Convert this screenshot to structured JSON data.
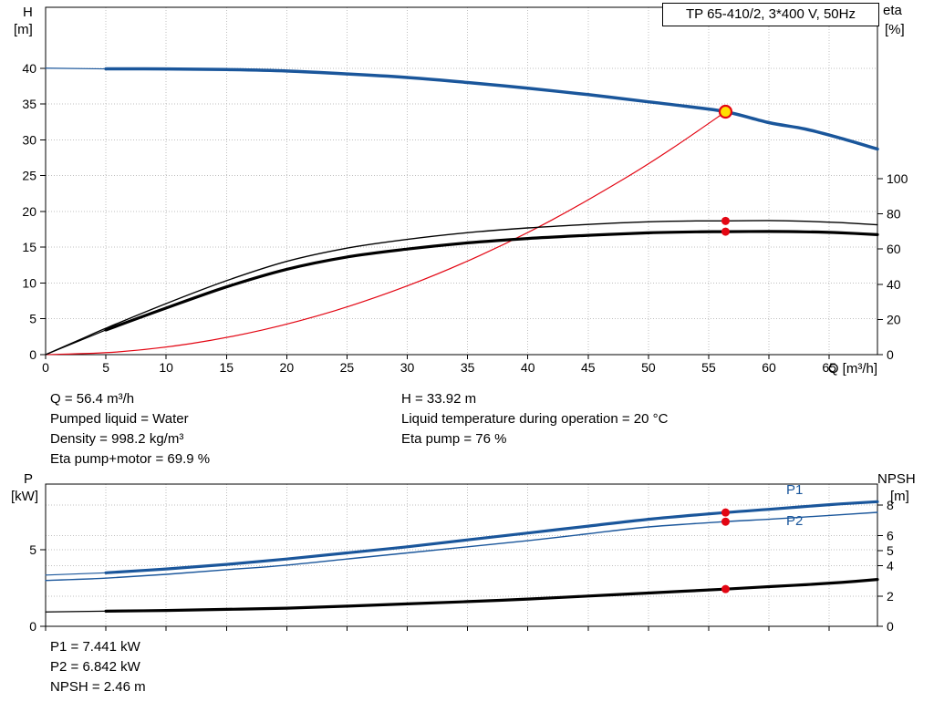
{
  "colors": {
    "blue": "#1a569b",
    "black": "#000000",
    "red": "#e30613",
    "duty": "#ffe000",
    "grid": "#bfbfbf"
  },
  "chart_data": [
    {
      "type": "line",
      "name": "hq-eta-chart",
      "title": "TP 65-410/2, 3*400 V, 50Hz",
      "x_axis": {
        "label": "Q [m³/h]",
        "range": [
          0,
          69
        ],
        "ticks": [
          0,
          5,
          10,
          15,
          20,
          25,
          30,
          35,
          40,
          45,
          50,
          55,
          60,
          65
        ],
        "grid": [
          5,
          10,
          15,
          20,
          25,
          30,
          35,
          40,
          45,
          50,
          55,
          60,
          65
        ],
        "show_tick_labels": true
      },
      "y_left": {
        "label": "H",
        "unit": "[m]",
        "range": [
          0,
          48.5
        ],
        "ticks": [
          0,
          5,
          10,
          15,
          20,
          25,
          30,
          35,
          40
        ],
        "grid": [
          5,
          10,
          15,
          20,
          25,
          30,
          35,
          40
        ]
      },
      "y_right": {
        "label": "eta",
        "unit": "[%]",
        "range": [
          0,
          197.4
        ],
        "ticks": [
          0,
          20,
          40,
          60,
          80,
          100
        ],
        "grid": []
      },
      "series": [
        {
          "name": "system-curve",
          "axis": "left",
          "color": "red",
          "width": 1.2,
          "points": [
            [
              0,
              0
            ],
            [
              6,
              0.38
            ],
            [
              12,
              1.53
            ],
            [
              18,
              3.45
            ],
            [
              24,
              6.14
            ],
            [
              30,
              9.6
            ],
            [
              36,
              13.82
            ],
            [
              42,
              18.8
            ],
            [
              48,
              24.57
            ],
            [
              52,
              28.83
            ],
            [
              56.4,
              33.92
            ]
          ]
        },
        {
          "name": "hq-curve-lead",
          "axis": "left",
          "color": "blue",
          "width": 1.2,
          "points": [
            [
              0,
              40
            ],
            [
              5,
              39.9
            ]
          ]
        },
        {
          "name": "hq-curve",
          "axis": "left",
          "color": "blue",
          "width": 3.5,
          "points": [
            [
              5,
              39.9
            ],
            [
              10,
              39.9
            ],
            [
              15,
              39.8
            ],
            [
              20,
              39.6
            ],
            [
              25,
              39.2
            ],
            [
              30,
              38.7
            ],
            [
              35,
              38.0
            ],
            [
              40,
              37.2
            ],
            [
              45,
              36.3
            ],
            [
              50,
              35.3
            ],
            [
              53,
              34.7
            ],
            [
              56.4,
              33.92
            ],
            [
              60,
              32.4
            ],
            [
              63,
              31.5
            ],
            [
              66,
              30.2
            ],
            [
              69,
              28.7
            ]
          ]
        },
        {
          "name": "eta-pump-curve",
          "axis": "right",
          "color": "black",
          "width": 1.4,
          "points": [
            [
              0,
              0
            ],
            [
              3,
              9
            ],
            [
              5,
              15
            ],
            [
              10,
              29
            ],
            [
              15,
              42
            ],
            [
              20,
              53
            ],
            [
              25,
              60.5
            ],
            [
              30,
              65.5
            ],
            [
              35,
              69.3
            ],
            [
              40,
              72
            ],
            [
              45,
              74
            ],
            [
              50,
              75.5
            ],
            [
              54,
              76
            ],
            [
              56.4,
              76
            ],
            [
              60,
              76.2
            ],
            [
              63,
              75.8
            ],
            [
              66,
              75
            ],
            [
              69,
              73.8
            ]
          ]
        },
        {
          "name": "eta-pump-motor-lead",
          "axis": "right",
          "color": "black",
          "width": 1.2,
          "points": [
            [
              0,
              0
            ],
            [
              5,
              14
            ]
          ]
        },
        {
          "name": "eta-pump-motor-curve",
          "axis": "right",
          "color": "black",
          "width": 3.2,
          "points": [
            [
              5,
              14
            ],
            [
              10,
              26.5
            ],
            [
              15,
              38.5
            ],
            [
              20,
              48.5
            ],
            [
              25,
              55.5
            ],
            [
              30,
              60
            ],
            [
              35,
              63.5
            ],
            [
              40,
              66
            ],
            [
              45,
              67.8
            ],
            [
              50,
              69.2
            ],
            [
              54,
              69.8
            ],
            [
              56.4,
              69.9
            ],
            [
              60,
              70
            ],
            [
              63,
              69.8
            ],
            [
              66,
              69.2
            ],
            [
              69,
              68.2
            ]
          ]
        }
      ],
      "markers": [
        {
          "name": "duty-point",
          "axis": "left",
          "x": 56.4,
          "y": 33.92,
          "style": "duty"
        },
        {
          "name": "eta-pump-point",
          "axis": "right",
          "x": 56.4,
          "y": 76,
          "style": "dot"
        },
        {
          "name": "eta-pump-motor-point",
          "axis": "right",
          "x": 56.4,
          "y": 69.9,
          "style": "dot"
        }
      ]
    },
    {
      "type": "line",
      "name": "power-npsh-chart",
      "title": "",
      "x_axis": {
        "label": "",
        "range": [
          0,
          69
        ],
        "ticks": [
          0,
          5,
          10,
          15,
          20,
          25,
          30,
          35,
          40,
          45,
          50,
          55,
          60,
          65
        ],
        "grid": [
          5,
          10,
          15,
          20,
          25,
          30,
          35,
          40,
          45,
          50,
          55,
          60,
          65
        ],
        "show_tick_labels": false
      },
      "y_left": {
        "label": "P",
        "unit": "[kW]",
        "range": [
          0,
          9.3
        ],
        "ticks": [
          0,
          5
        ],
        "grid": [
          5
        ]
      },
      "y_right": {
        "label": "NPSH",
        "unit": "[m]",
        "range": [
          0,
          9.4
        ],
        "ticks": [
          0,
          2,
          4,
          5,
          6,
          8
        ],
        "grid": [
          2,
          4,
          6,
          8
        ]
      },
      "labels": {
        "p1": "P1",
        "p2": "P2"
      },
      "series": [
        {
          "name": "p1-curve-lead",
          "axis": "left",
          "color": "blue",
          "width": 1.2,
          "points": [
            [
              0,
              3.35
            ],
            [
              5,
              3.5
            ]
          ]
        },
        {
          "name": "p1-curve",
          "axis": "left",
          "color": "blue",
          "width": 3.2,
          "points": [
            [
              5,
              3.5
            ],
            [
              10,
              3.75
            ],
            [
              15,
              4.05
            ],
            [
              20,
              4.4
            ],
            [
              25,
              4.8
            ],
            [
              30,
              5.2
            ],
            [
              35,
              5.65
            ],
            [
              40,
              6.1
            ],
            [
              45,
              6.55
            ],
            [
              50,
              7.0
            ],
            [
              56.4,
              7.441
            ],
            [
              60,
              7.65
            ],
            [
              65,
              7.95
            ],
            [
              69,
              8.15
            ]
          ]
        },
        {
          "name": "p2-curve",
          "axis": "left",
          "color": "blue",
          "width": 1.4,
          "points": [
            [
              0,
              3.0
            ],
            [
              5,
              3.15
            ],
            [
              10,
              3.4
            ],
            [
              15,
              3.7
            ],
            [
              20,
              4.0
            ],
            [
              25,
              4.4
            ],
            [
              30,
              4.8
            ],
            [
              35,
              5.2
            ],
            [
              40,
              5.6
            ],
            [
              45,
              6.05
            ],
            [
              50,
              6.5
            ],
            [
              56.4,
              6.842
            ],
            [
              60,
              7.0
            ],
            [
              65,
              7.25
            ],
            [
              69,
              7.45
            ]
          ]
        },
        {
          "name": "npsh-curve-lead",
          "axis": "right",
          "color": "black",
          "width": 1.2,
          "points": [
            [
              0,
              0.95
            ],
            [
              5,
              1.0
            ]
          ]
        },
        {
          "name": "npsh-curve",
          "axis": "right",
          "color": "black",
          "width": 3.2,
          "points": [
            [
              5,
              1.0
            ],
            [
              10,
              1.05
            ],
            [
              15,
              1.12
            ],
            [
              20,
              1.2
            ],
            [
              25,
              1.33
            ],
            [
              30,
              1.48
            ],
            [
              35,
              1.63
            ],
            [
              40,
              1.8
            ],
            [
              45,
              2.0
            ],
            [
              50,
              2.2
            ],
            [
              56.4,
              2.46
            ],
            [
              60,
              2.62
            ],
            [
              63,
              2.75
            ],
            [
              66,
              2.9
            ],
            [
              69,
              3.1
            ]
          ]
        }
      ],
      "markers": [
        {
          "name": "p1-point",
          "axis": "left",
          "x": 56.4,
          "y": 7.441,
          "style": "dot"
        },
        {
          "name": "p2-point",
          "axis": "left",
          "x": 56.4,
          "y": 6.842,
          "style": "dot"
        },
        {
          "name": "npsh-point",
          "axis": "right",
          "x": 56.4,
          "y": 2.46,
          "style": "dot"
        }
      ]
    }
  ],
  "annotations": {
    "mid_left": [
      "Q = 56.4 m³/h",
      "Pumped liquid = Water",
      "Density = 998.2 kg/m³",
      "Eta pump+motor = 69.9 %"
    ],
    "mid_right": [
      "H = 33.92 m",
      "Liquid temperature during operation = 20 °C",
      "Eta pump = 76 %"
    ],
    "bottom": [
      "P1 = 7.441 kW",
      "P2 = 6.842 kW",
      "NPSH = 2.46 m"
    ]
  }
}
